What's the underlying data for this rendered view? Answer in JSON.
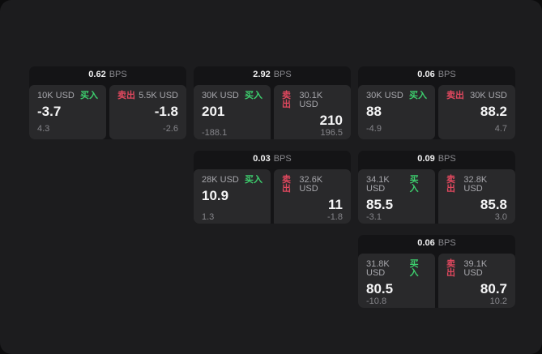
{
  "labels": {
    "bps_suffix": "BPS",
    "buy": "买入",
    "sell": "卖出"
  },
  "colors": {
    "buy": "#3dcf6e",
    "sell": "#e0485e"
  },
  "cards": [
    {
      "col": 1,
      "row": 1,
      "bps_value": "0.62",
      "buy": {
        "size": "10K USD",
        "price": "-3.7",
        "sub": "4.3"
      },
      "sell": {
        "size": "5.5K USD",
        "price": "-1.8",
        "sub": "-2.6"
      }
    },
    {
      "col": 2,
      "row": 1,
      "bps_value": "2.92",
      "buy": {
        "size": "30K USD",
        "price": "201",
        "sub": "-188.1"
      },
      "sell": {
        "size": "30.1K USD",
        "price": "210",
        "sub": "196.5"
      }
    },
    {
      "col": 3,
      "row": 1,
      "bps_value": "0.06",
      "buy": {
        "size": "30K USD",
        "price": "88",
        "sub": "-4.9"
      },
      "sell": {
        "size": "30K USD",
        "price": "88.2",
        "sub": "4.7"
      }
    },
    {
      "col": 2,
      "row": 2,
      "bps_value": "0.03",
      "buy": {
        "size": "28K USD",
        "price": "10.9",
        "sub": "1.3"
      },
      "sell": {
        "size": "32.6K USD",
        "price": "11",
        "sub": "-1.8"
      }
    },
    {
      "col": 3,
      "row": 2,
      "bps_value": "0.09",
      "buy": {
        "size": "34.1K USD",
        "price": "85.5",
        "sub": "-3.1"
      },
      "sell": {
        "size": "32.8K USD",
        "price": "85.8",
        "sub": "3.0"
      }
    },
    {
      "col": 3,
      "row": 3,
      "bps_value": "0.06",
      "buy": {
        "size": "31.8K USD",
        "price": "80.5",
        "sub": "-10.8"
      },
      "sell": {
        "size": "39.1K USD",
        "price": "80.7",
        "sub": "10.2"
      }
    }
  ]
}
